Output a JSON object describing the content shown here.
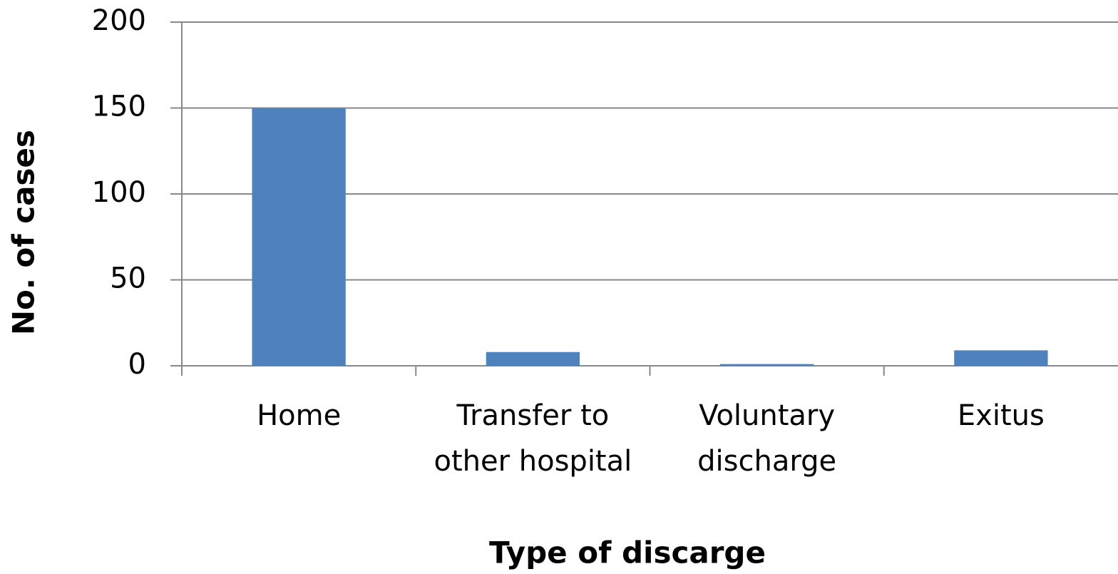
{
  "chart_data": {
    "type": "bar",
    "x_label": "Type of discarge",
    "y_label": "No. of cases",
    "categories": [
      "Home",
      "Transfer to other hospital",
      "Voluntary discharge",
      "Exitus"
    ],
    "values": [
      150,
      8,
      1,
      9
    ],
    "color": "#4f81bd",
    "ylim": [
      0,
      200
    ],
    "yticks": [
      0,
      50,
      100,
      150,
      200
    ],
    "grid": true
  }
}
